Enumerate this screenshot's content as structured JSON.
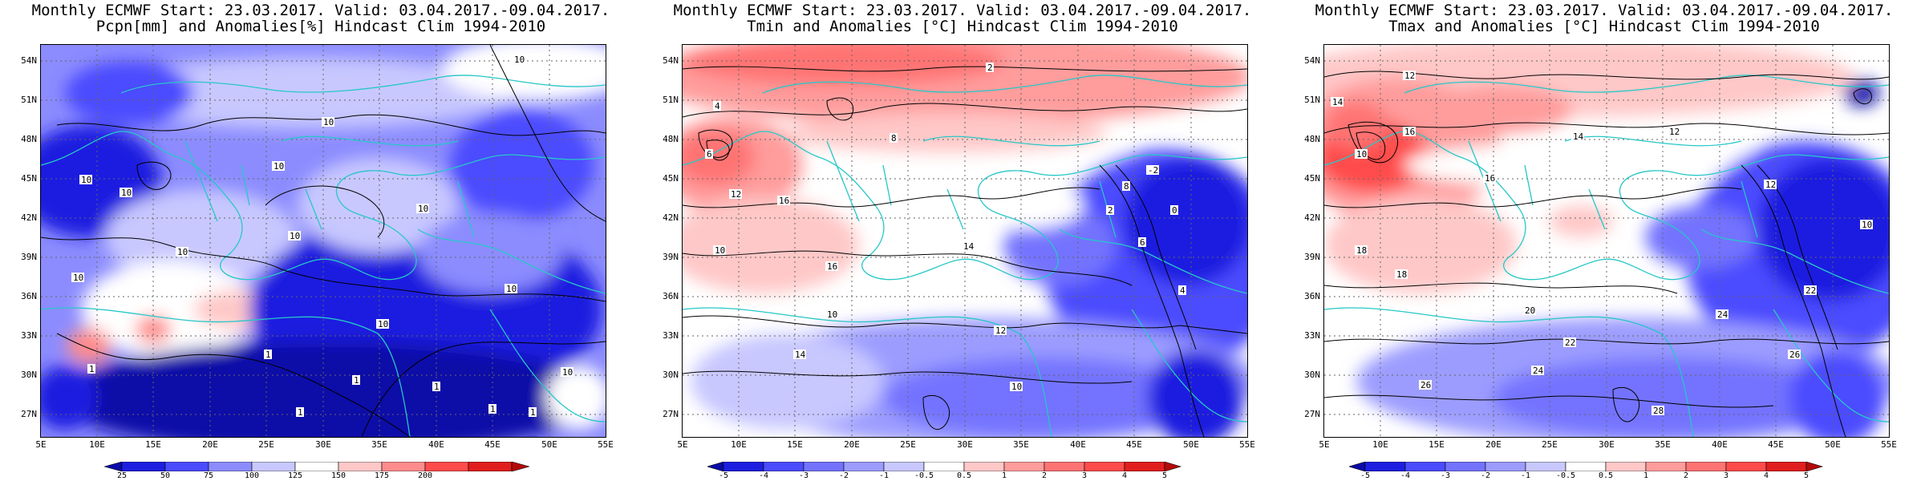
{
  "panels": [
    {
      "title_line1": "Monthly ECMWF Start: 23.03.2017. Valid: 03.04.2017.-09.04.2017.",
      "title_line2": "Pcpn[mm] and Anomalies[%] Hindcast Clim 1994-2010",
      "contour_labels": [
        "10",
        "10",
        "10",
        "10",
        "10",
        "10",
        "10",
        "10",
        "10",
        "10",
        "10",
        "10",
        "1",
        "1",
        "1",
        "1",
        "1",
        "1",
        "1"
      ],
      "colorbar": {
        "labels": [
          "25",
          "50",
          "75",
          "100",
          "125",
          "150",
          "175",
          "200"
        ],
        "colors": [
          "#0a0aa8",
          "#1e1ee0",
          "#4b4bff",
          "#8c8cff",
          "#c8c8ff",
          "#ffffff",
          "#ffc8c8",
          "#ff8c8c",
          "#ff4b4b",
          "#e11e1e",
          "#b40a0a"
        ]
      }
    },
    {
      "title_line1": "Monthly ECMWF Start: 23.03.2017. Valid: 03.04.2017.-09.04.2017.",
      "title_line2": "Tmin and Anomalies [°C] Hindcast Clim 1994-2010",
      "contour_labels": [
        "2",
        "4",
        "6",
        "8",
        "10",
        "12",
        "14",
        "16",
        "10",
        "12",
        "16",
        "14",
        "10",
        "8",
        "6",
        "4",
        "2",
        "-2",
        "0"
      ],
      "colorbar": {
        "labels": [
          "-5",
          "-4",
          "-3",
          "-2",
          "-1",
          "-0.5",
          "0.5",
          "1",
          "2",
          "3",
          "4",
          "5"
        ],
        "colors": [
          "#0a0aa8",
          "#1e1ee0",
          "#4b4bff",
          "#7373ff",
          "#9c9cff",
          "#c8c8ff",
          "#ffffff",
          "#ffc8c8",
          "#ff9c9c",
          "#ff7373",
          "#ff4b4b",
          "#e11e1e",
          "#b40a0a"
        ]
      }
    },
    {
      "title_line1": "Monthly ECMWF Start: 23.03.2017. Valid: 03.04.2017.-09.04.2017.",
      "title_line2": "Tmax and Anomalies [°C] Hindcast Clim 1994-2010",
      "contour_labels": [
        "12",
        "14",
        "16",
        "10",
        "12",
        "18",
        "20",
        "22",
        "24",
        "26",
        "28",
        "10",
        "12",
        "14",
        "16",
        "18",
        "22",
        "24",
        "26"
      ],
      "colorbar": {
        "labels": [
          "-5",
          "-4",
          "-3",
          "-2",
          "-1",
          "-0.5",
          "0.5",
          "1",
          "2",
          "3",
          "4",
          "5"
        ],
        "colors": [
          "#0a0aa8",
          "#1e1ee0",
          "#4b4bff",
          "#7373ff",
          "#9c9cff",
          "#c8c8ff",
          "#ffffff",
          "#ffc8c8",
          "#ff9c9c",
          "#ff7373",
          "#ff4b4b",
          "#e11e1e",
          "#b40a0a"
        ]
      }
    }
  ],
  "axes": {
    "lat_labels": [
      "54N",
      "51N",
      "48N",
      "45N",
      "42N",
      "39N",
      "36N",
      "33N",
      "30N",
      "27N"
    ],
    "lon_labels": [
      "5E",
      "10E",
      "15E",
      "20E",
      "25E",
      "30E",
      "35E",
      "40E",
      "45E",
      "50E",
      "55E"
    ]
  },
  "colors": {
    "coastline": "#27c7c7",
    "contour": "#000000",
    "grid": "#666666"
  }
}
